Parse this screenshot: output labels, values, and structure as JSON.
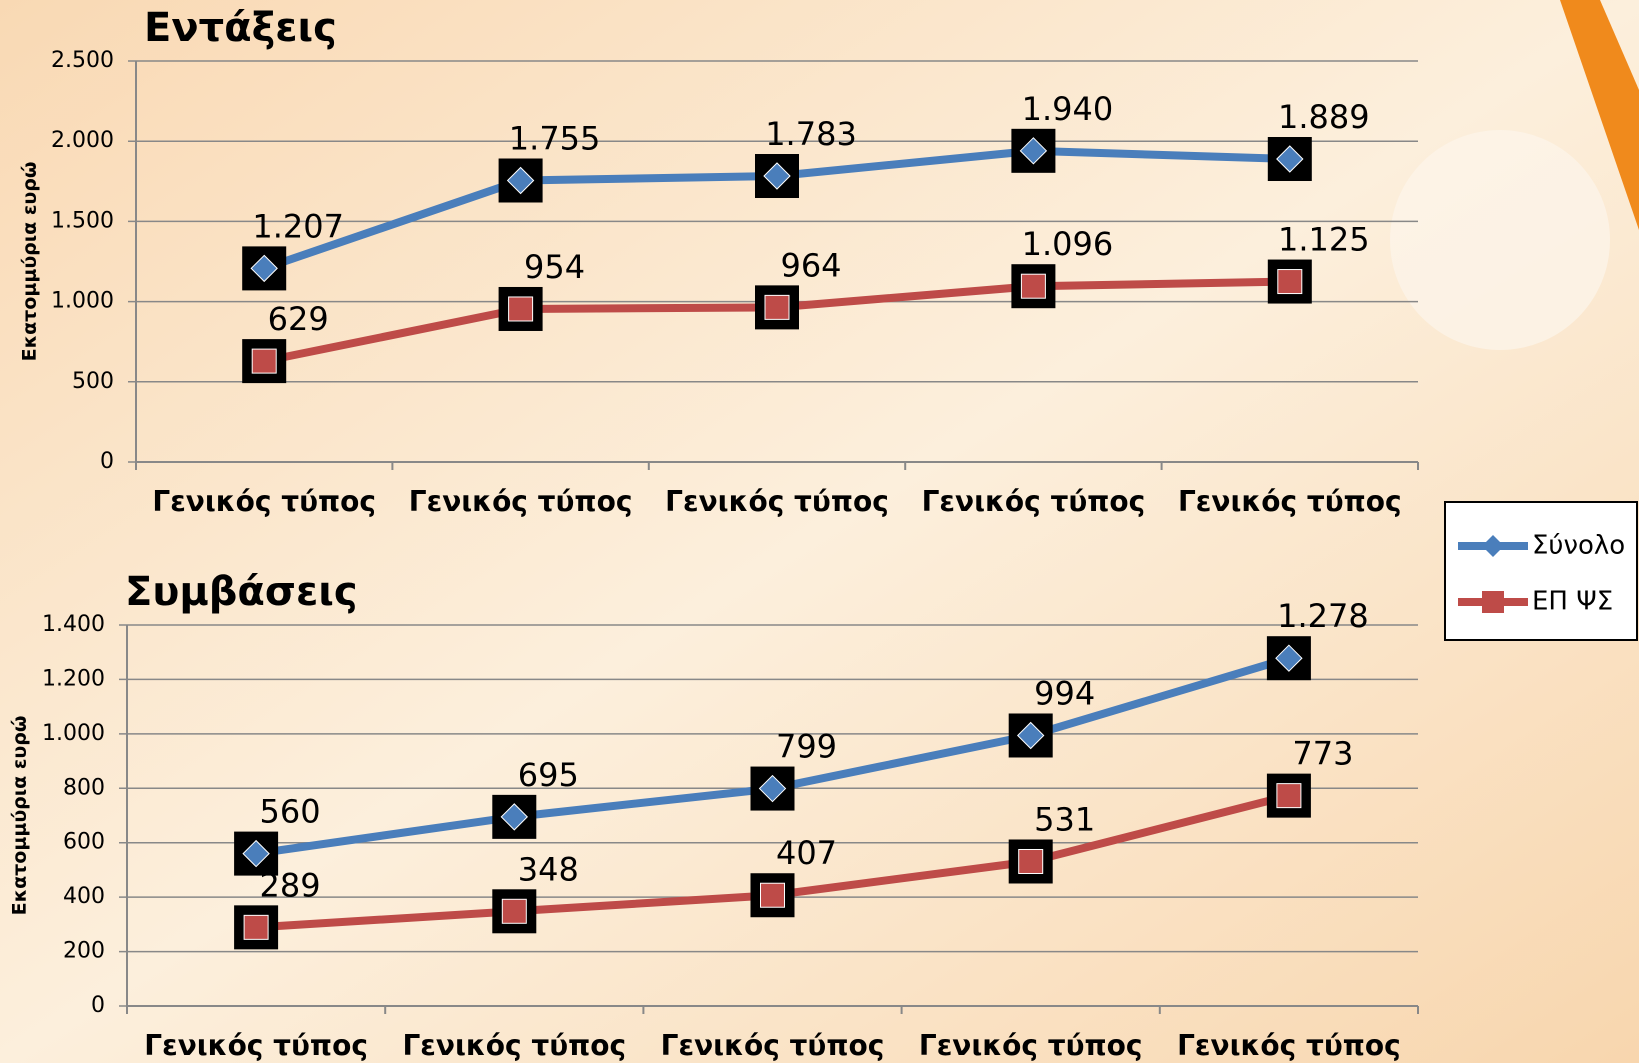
{
  "chart_data": [
    {
      "type": "line",
      "title": "Εντάξεις",
      "y_label": "Εκατομμύρια ευρώ",
      "categories": [
        "Γενικός τύπος",
        "Γενικός τύπος",
        "Γενικός τύπος",
        "Γενικός τύπος",
        "Γενικός τύπος"
      ],
      "series": [
        {
          "name": "Σύνολο",
          "color": "#4a7ebb",
          "marker": "diamond",
          "values": [
            1207,
            1755,
            1783,
            1940,
            1889
          ],
          "value_labels": [
            "1.207",
            "1.755",
            "1.783",
            "1.940",
            "1.889"
          ]
        },
        {
          "name": "ΕΠ ΨΣ",
          "color": "#be4b48",
          "marker": "square",
          "values": [
            629,
            954,
            964,
            1096,
            1125
          ],
          "value_labels": [
            "629",
            "954",
            "964",
            "1.096",
            "1.125"
          ]
        }
      ],
      "ylim": [
        0,
        2500
      ],
      "yticks": [
        0,
        500,
        {
          "value": 1000,
          "label": "1.000"
        },
        {
          "value": 1500,
          "label": "1.500"
        },
        {
          "value": 2000,
          "label": "2.000"
        },
        {
          "value": 2500,
          "label": "2.500"
        }
      ],
      "grid": true
    },
    {
      "type": "line",
      "title": "Συμβάσεις",
      "y_label": "Εκατομμύρια ευρώ",
      "categories": [
        "Γενικός τύπος",
        "Γενικός τύπος",
        "Γενικός τύπος",
        "Γενικός τύπος",
        "Γενικός τύπος"
      ],
      "series": [
        {
          "color": "#4a7ebb",
          "marker": "diamond",
          "values": [
            560,
            695,
            799,
            994,
            1278
          ],
          "value_labels": [
            "560",
            "695",
            "799",
            "994",
            "1.278"
          ]
        },
        {
          "color": "#be4b48",
          "marker": "square",
          "values": [
            289,
            348,
            407,
            531,
            773
          ],
          "value_labels": [
            "289",
            "348",
            "407",
            "531",
            "773"
          ]
        }
      ],
      "ylim": [
        0,
        1400
      ],
      "yticks": [
        0,
        200,
        400,
        600,
        800,
        {
          "value": 1000,
          "label": "1.000"
        },
        {
          "value": 1200,
          "label": "1.200"
        },
        {
          "value": 1400,
          "label": "1.400"
        }
      ],
      "grid": true
    }
  ]
}
